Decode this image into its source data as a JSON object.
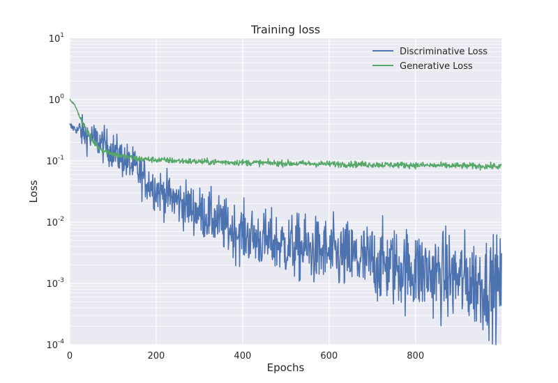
{
  "chart_data": {
    "type": "line",
    "title": "Training loss",
    "xlabel": "Epochs",
    "ylabel": "Loss",
    "xlim": [
      0,
      999
    ],
    "ylim": [
      0.0001,
      10
    ],
    "yscale": "log",
    "grid": true,
    "legend_position": "top-right",
    "x_ticks": [
      {
        "value": 0,
        "label": "0"
      },
      {
        "value": 200,
        "label": "200"
      },
      {
        "value": 400,
        "label": "400"
      },
      {
        "value": 600,
        "label": "600"
      },
      {
        "value": 800,
        "label": "800"
      }
    ],
    "y_ticks": [
      {
        "value": 0.0001,
        "base": "10",
        "exp": "-4"
      },
      {
        "value": 0.001,
        "base": "10",
        "exp": "-3"
      },
      {
        "value": 0.01,
        "base": "10",
        "exp": "-2"
      },
      {
        "value": 0.1,
        "base": "10",
        "exp": "-1"
      },
      {
        "value": 1,
        "base": "10",
        "exp": "0"
      },
      {
        "value": 10,
        "base": "10",
        "exp": "1"
      }
    ],
    "colors": {
      "plot_background": "#eaeaf2",
      "grid": "#ffffff"
    },
    "series": [
      {
        "name": "Discriminative Loss",
        "color": "#4c72b0",
        "x": [
          0,
          25,
          50,
          75,
          100,
          125,
          150,
          175,
          200,
          225,
          250,
          275,
          300,
          325,
          350,
          375,
          400,
          450,
          500,
          550,
          600,
          650,
          700,
          750,
          800,
          850,
          900,
          950,
          999
        ],
        "y": [
          0.37,
          0.3,
          0.24,
          0.19,
          0.145,
          0.105,
          0.075,
          0.05,
          0.035,
          0.027,
          0.022,
          0.018,
          0.0145,
          0.012,
          0.0095,
          0.0075,
          0.0065,
          0.005,
          0.0042,
          0.0035,
          0.003,
          0.0026,
          0.0022,
          0.0019,
          0.0016,
          0.0014,
          0.0012,
          0.001,
          0.0009
        ],
        "noise": 0.12,
        "noise_growth": 0.45,
        "spikes": [
          [
            543,
            0.011
          ],
          [
            590,
            0.0085
          ],
          [
            700,
            0.007
          ],
          [
            800,
            0.005
          ]
        ]
      },
      {
        "name": "Generative Loss",
        "color": "#55a868",
        "x": [
          0,
          10,
          20,
          30,
          40,
          50,
          60,
          70,
          80,
          90,
          100,
          125,
          150,
          175,
          200,
          250,
          300,
          400,
          500,
          600,
          700,
          800,
          900,
          999
        ],
        "y": [
          1.0,
          0.85,
          0.6,
          0.42,
          0.3,
          0.23,
          0.185,
          0.16,
          0.145,
          0.14,
          0.13,
          0.118,
          0.11,
          0.106,
          0.104,
          0.1,
          0.097,
          0.094,
          0.091,
          0.089,
          0.087,
          0.085,
          0.083,
          0.081
        ],
        "noise": 0.025,
        "noise_growth": 0,
        "spikes": []
      }
    ]
  }
}
